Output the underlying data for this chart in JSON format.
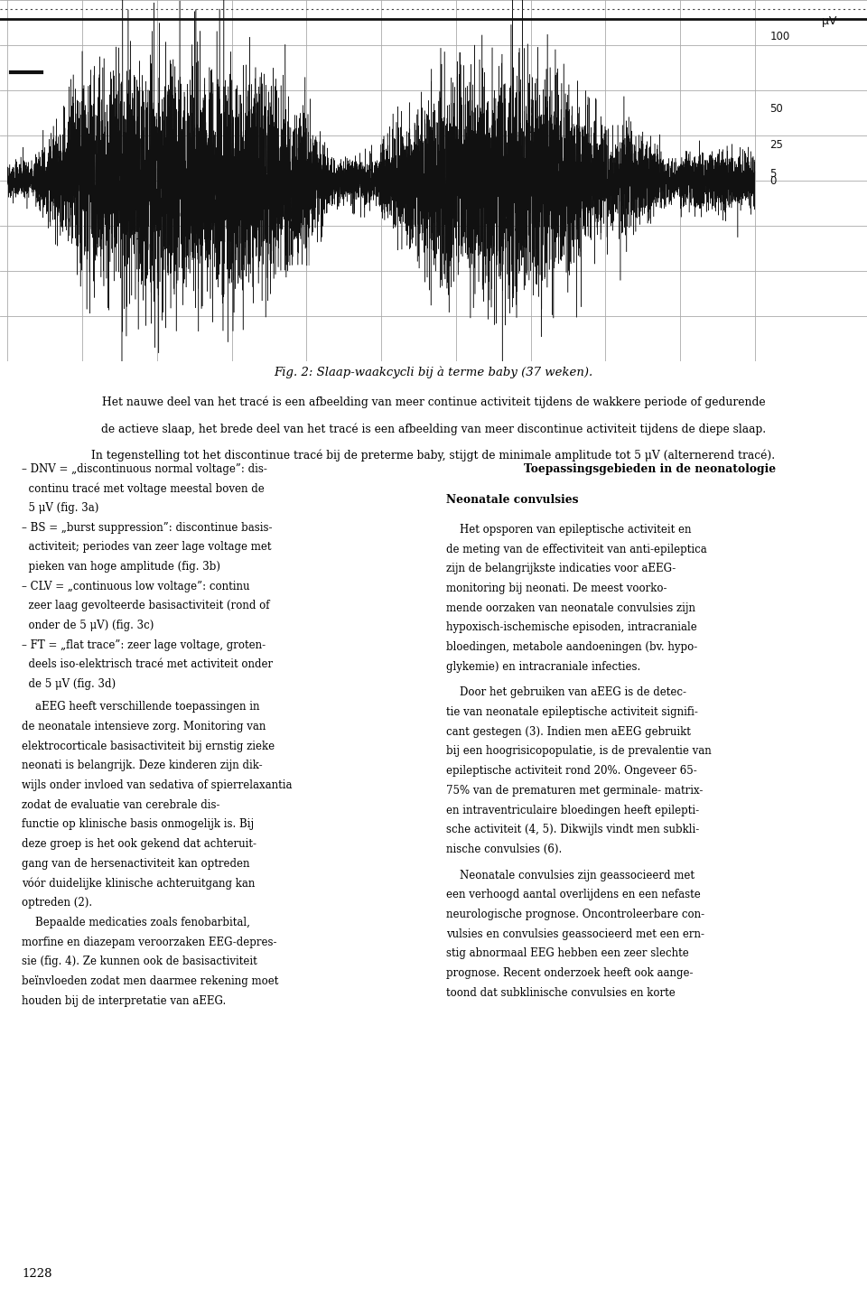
{
  "fig_caption": "Fig. 2: Slaap-waakcycli bij à terme baby (37 weken).",
  "caption_line1": "Het nauwe deel van het tracé is een afbeelding van meer continue activiteit tijdens de wakkere periode of gedurende",
  "caption_line2": "de actieve slaap, het brede deel van het tracé is een afbeelding van meer discontinue activiteit tijdens de diepe slaap.",
  "caption_line3": "In tegenstelling tot het discontinue tracé bij de preterme baby, stijgt de minimale amplitude tot 5 μV (alternerend tracé).",
  "right_col_title": "Toepassingsgebieden in de neonatologie",
  "right_col_subtitle": "Neonatale convulsies",
  "page_number": "1228",
  "y_label_unit": "μV",
  "bg_color": "#e8e6e0",
  "grid_color": "#aaaaaa",
  "trace_color": "#111111",
  "eeg_ylim": [
    -125,
    125
  ],
  "seed": 42
}
